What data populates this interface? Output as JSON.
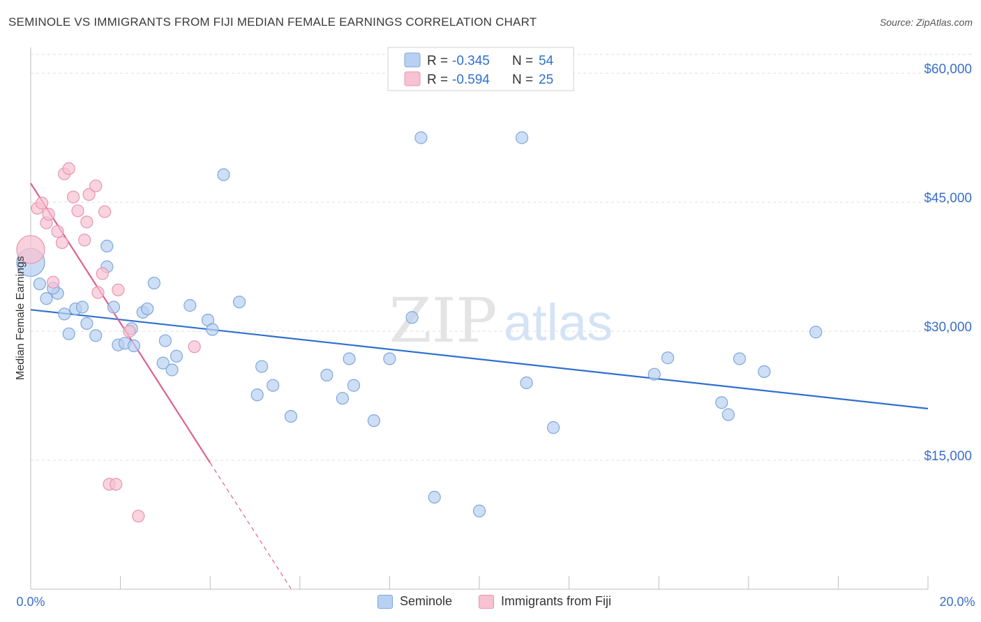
{
  "title": "SEMINOLE VS IMMIGRANTS FROM FIJI MEDIAN FEMALE EARNINGS CORRELATION CHART",
  "source": "Source: ZipAtlas.com",
  "watermark": {
    "zip": "ZIP",
    "atlas": "atlas"
  },
  "colors": {
    "blue_fill": "#b8d0f1",
    "blue_stroke": "#7ea7dd",
    "blue_line": "#2f6fcf",
    "pink_fill": "#f7c2d2",
    "pink_stroke": "#e894b0",
    "pink_line": "#e0608f",
    "axis_label": "#3a6fc8",
    "grid": "#dcdcdc"
  },
  "stats_box": {
    "rows": [
      {
        "r_label": "R =",
        "r_value": "-0.345",
        "n_label": "N =",
        "n_value": "54"
      },
      {
        "r_label": "R =",
        "r_value": "-0.594",
        "n_label": "N =",
        "n_value": "25"
      }
    ]
  },
  "legend": {
    "seminole": "Seminole",
    "fiji": "Immigrants from Fiji"
  },
  "chart_data": {
    "type": "scatter",
    "title": "SEMINOLE VS IMMIGRANTS FROM FIJI MEDIAN FEMALE EARNINGS CORRELATION CHART",
    "xlabel": "",
    "ylabel": "Median Female Earnings",
    "xlim": [
      0,
      20
    ],
    "ylim": [
      0,
      63000
    ],
    "x_tick_labels": [
      "0.0%",
      "20.0%"
    ],
    "y_ticks": [
      15000,
      30000,
      45000,
      60000
    ],
    "y_tick_labels": [
      "$15,000",
      "$30,000",
      "$45,000",
      "$60,000"
    ],
    "grid": true,
    "legend_position": "bottom",
    "series": [
      {
        "name": "Seminole",
        "points": [
          [
            0.0,
            38000,
            "big"
          ],
          [
            0.2,
            35500
          ],
          [
            0.35,
            33800
          ],
          [
            0.6,
            34400
          ],
          [
            0.5,
            35000
          ],
          [
            0.75,
            32000
          ],
          [
            0.85,
            29700
          ],
          [
            1.0,
            32600
          ],
          [
            1.15,
            32800
          ],
          [
            1.25,
            30900
          ],
          [
            1.45,
            29500
          ],
          [
            1.7,
            39900
          ],
          [
            1.7,
            37500
          ],
          [
            1.85,
            32800
          ],
          [
            1.95,
            28400
          ],
          [
            2.1,
            28600
          ],
          [
            2.25,
            30300
          ],
          [
            2.3,
            28300
          ],
          [
            2.5,
            32200
          ],
          [
            2.6,
            32600
          ],
          [
            2.75,
            35600
          ],
          [
            2.95,
            26300
          ],
          [
            3.0,
            28900
          ],
          [
            3.15,
            25500
          ],
          [
            3.25,
            27100
          ],
          [
            3.55,
            33000
          ],
          [
            3.95,
            31300
          ],
          [
            4.05,
            30200
          ],
          [
            4.3,
            48200
          ],
          [
            4.65,
            33400
          ],
          [
            5.05,
            22600
          ],
          [
            5.15,
            25900
          ],
          [
            5.4,
            23700
          ],
          [
            5.8,
            20100
          ],
          [
            6.6,
            24900
          ],
          [
            6.95,
            22200
          ],
          [
            7.1,
            26800
          ],
          [
            7.2,
            23700
          ],
          [
            7.65,
            19600
          ],
          [
            8.0,
            26800
          ],
          [
            8.5,
            31600
          ],
          [
            8.7,
            52500
          ],
          [
            9.0,
            10700
          ],
          [
            10.0,
            9100
          ],
          [
            10.95,
            52500
          ],
          [
            11.05,
            24000
          ],
          [
            11.65,
            18800
          ],
          [
            13.9,
            25000
          ],
          [
            14.2,
            26900
          ],
          [
            15.4,
            21700
          ],
          [
            15.55,
            20300
          ],
          [
            15.8,
            26800
          ],
          [
            16.35,
            25300
          ],
          [
            17.5,
            29900
          ]
        ],
        "trend": {
          "x0": 0.0,
          "y0": 32500,
          "x1": 20.0,
          "y1": 21000
        }
      },
      {
        "name": "Immigrants from Fiji",
        "points": [
          [
            0.0,
            39500,
            "big"
          ],
          [
            0.15,
            44300
          ],
          [
            0.25,
            44900
          ],
          [
            0.35,
            42600
          ],
          [
            0.4,
            43600
          ],
          [
            0.5,
            35700
          ],
          [
            0.6,
            41600
          ],
          [
            0.7,
            40300
          ],
          [
            0.75,
            48300
          ],
          [
            0.85,
            48900
          ],
          [
            0.95,
            45600
          ],
          [
            1.05,
            44000
          ],
          [
            1.2,
            40600
          ],
          [
            1.25,
            42700
          ],
          [
            1.3,
            45900
          ],
          [
            1.45,
            46900
          ],
          [
            1.5,
            34500
          ],
          [
            1.6,
            36700
          ],
          [
            1.65,
            43900
          ],
          [
            1.75,
            12200
          ],
          [
            1.9,
            12200
          ],
          [
            1.95,
            34800
          ],
          [
            2.2,
            30000
          ],
          [
            2.4,
            8500
          ],
          [
            3.65,
            28200
          ]
        ],
        "trend": {
          "x0": 0.0,
          "y0": 47200,
          "x1": 4.0,
          "y1": 14700,
          "dash_to_x": 5.8
        }
      }
    ]
  }
}
